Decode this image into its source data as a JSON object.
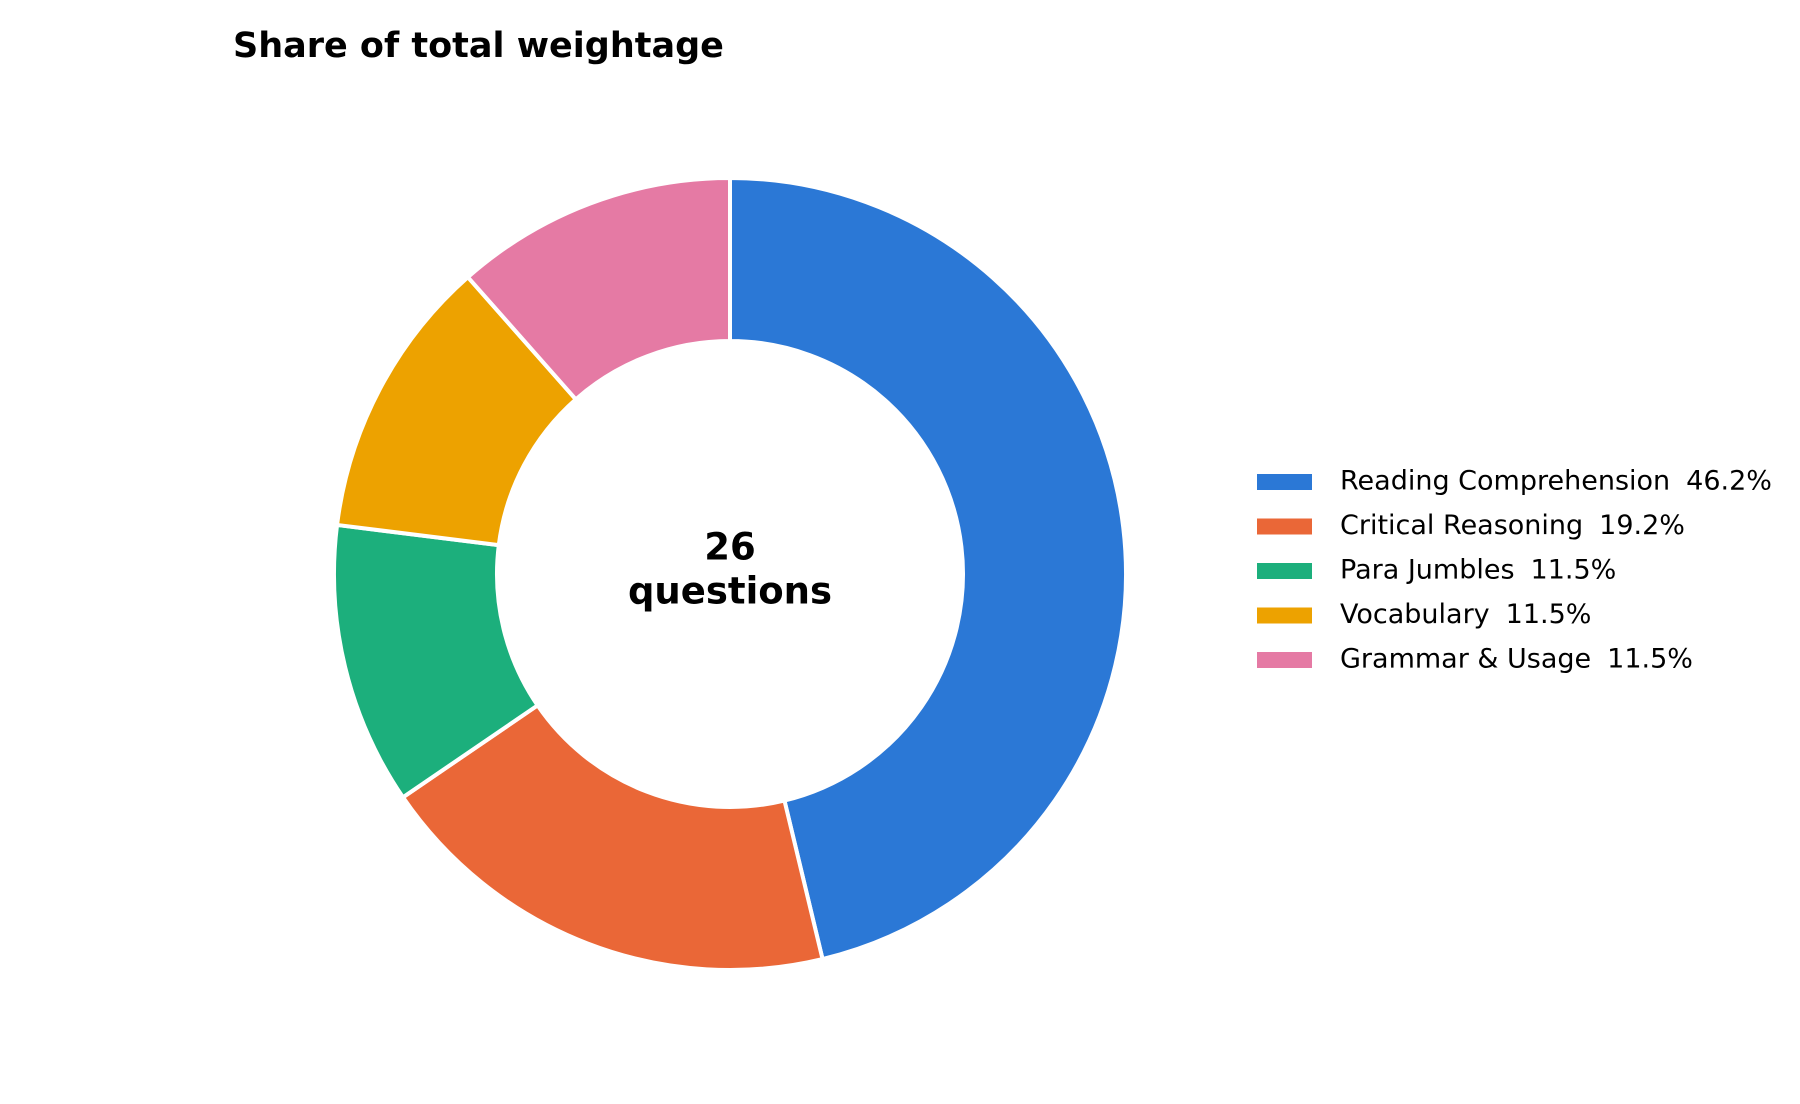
{
  "chart_data": {
    "type": "donut",
    "title": "Share of total weightage",
    "center_value": 26,
    "center_label": "questions",
    "series": [
      {
        "name": "Reading Comprehension",
        "color": "#2b78d6",
        "values": [
          46.2
        ],
        "value_labels": [
          "46.2%"
        ]
      },
      {
        "name": "Critical Reasoning",
        "color": "#ea6737",
        "values": [
          19.2
        ],
        "value_labels": [
          "19.2%"
        ]
      },
      {
        "name": "Para Jumbles",
        "color": "#1caf7c",
        "values": [
          11.5
        ],
        "value_labels": [
          "11.5%"
        ]
      },
      {
        "name": "Vocabulary",
        "color": "#eda200",
        "values": [
          11.5
        ],
        "value_labels": [
          "11.5%"
        ]
      },
      {
        "name": "Grammar & Usage",
        "color": "#e57aa4",
        "values": [
          11.5
        ],
        "value_labels": [
          "11.5%"
        ]
      }
    ]
  }
}
